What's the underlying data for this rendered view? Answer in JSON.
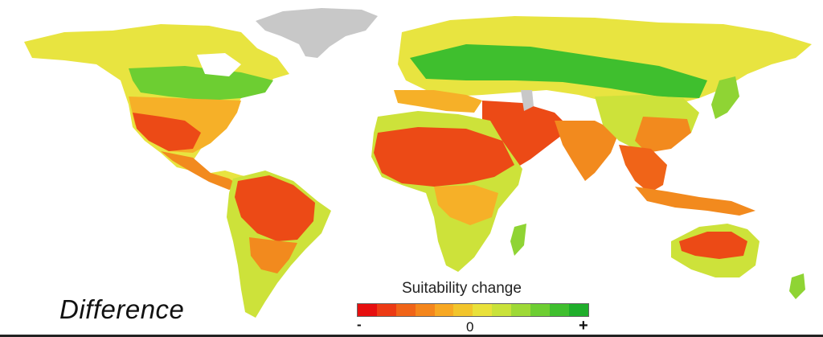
{
  "panel_label": "Difference",
  "legend": {
    "title": "Suitability change",
    "tick_min": "-",
    "tick_zero": "0",
    "tick_max": "+",
    "colors": [
      "#e60f0f",
      "#ec3a14",
      "#f06418",
      "#f4861c",
      "#f7a823",
      "#f2c52b",
      "#e9e13a",
      "#c9e23a",
      "#9ed936",
      "#6dce32",
      "#3fbf2e",
      "#1fae2b"
    ]
  },
  "map_colors": {
    "no_data": "#c8c8c8",
    "ocean": "#ffffff",
    "strong_loss": "#ec4a16",
    "loss": "#f28a1e",
    "slight_loss": "#f6b028",
    "neutral": "#e8e440",
    "slight_gain": "#cde23a",
    "gain": "#8fd434",
    "strong_gain": "#3fbf2e"
  }
}
